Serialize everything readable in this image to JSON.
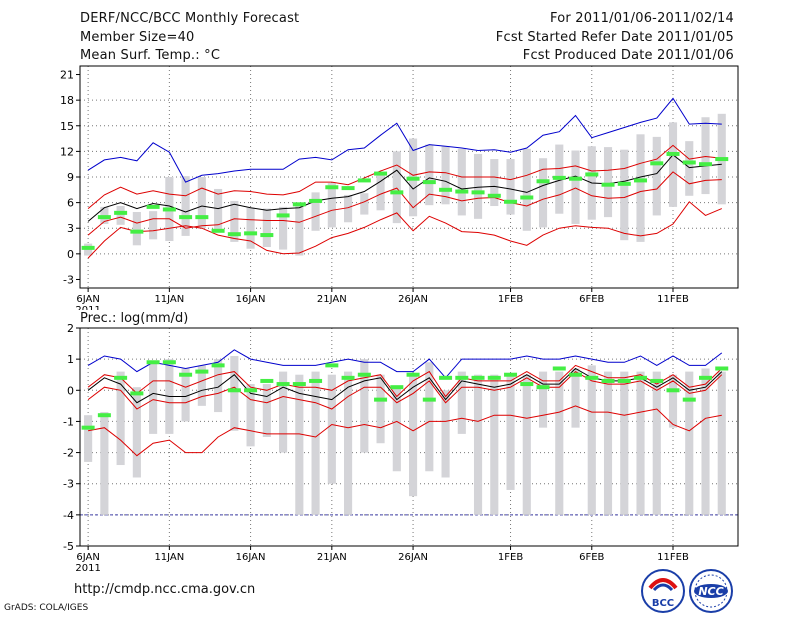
{
  "header": {
    "left": [
      "DERF/NCC/BCC Monthly Forecast",
      "Member Size=40",
      "Mean Surf. Temp.: °C"
    ],
    "right": [
      "For 2011/01/06-2011/02/14",
      "Fcst Started Refer Date 2011/01/05",
      "Fcst Produced Date 2011/01/06"
    ]
  },
  "footer": {
    "url": "http://cmdp.ncc.cma.gov.cn",
    "credit": "GrADS: COLA/IGES",
    "logo1_text": "BCC",
    "logo2_text": "NCC"
  },
  "colors": {
    "max": "#0000cc",
    "spread": "#dd0000",
    "mean": "#000000",
    "box": "#d4d4d8",
    "marker": "#44ee44",
    "grid": "#777777",
    "floor": "#4444aa"
  },
  "chart_data": [
    {
      "type": "line",
      "title": "Mean Surf. Temp.: °C",
      "x": [
        6,
        7,
        8,
        9,
        10,
        11,
        12,
        13,
        14,
        15,
        16,
        17,
        18,
        19,
        20,
        21,
        22,
        23,
        24,
        25,
        26,
        27,
        28,
        29,
        30,
        31,
        32,
        33,
        34,
        35,
        36,
        37,
        38,
        39,
        40,
        41,
        42,
        43,
        44,
        45
      ],
      "xticks": [
        {
          "day": 6,
          "label": "6JAN",
          "sub": "2011"
        },
        {
          "day": 11,
          "label": "11JAN"
        },
        {
          "day": 16,
          "label": "16JAN"
        },
        {
          "day": 21,
          "label": "21JAN"
        },
        {
          "day": 26,
          "label": "26JAN"
        },
        {
          "day": 32,
          "label": "1FEB"
        },
        {
          "day": 37,
          "label": "6FEB"
        },
        {
          "day": 42,
          "label": "11FEB"
        }
      ],
      "ylim": [
        -4,
        22
      ],
      "yticks": [
        -3,
        0,
        3,
        6,
        9,
        12,
        15,
        18,
        21
      ],
      "series": [
        {
          "name": "max",
          "values": [
            9.8,
            11.0,
            11.3,
            10.9,
            13.0,
            11.9,
            8.4,
            9.2,
            9.4,
            9.7,
            9.9,
            9.9,
            9.9,
            11.1,
            11.3,
            11.0,
            12.2,
            12.4,
            13.9,
            15.3,
            12.1,
            12.8,
            12.6,
            12.4,
            12.1,
            12.2,
            11.9,
            12.4,
            13.9,
            14.3,
            16.2,
            13.6,
            14.2,
            14.8,
            15.4,
            15.9,
            18.2,
            15.2,
            15.3,
            15.2
          ]
        },
        {
          "name": "upper",
          "values": [
            5.3,
            6.9,
            7.8,
            7.0,
            7.4,
            7.0,
            6.8,
            7.7,
            7.0,
            7.4,
            7.3,
            7.0,
            6.9,
            7.3,
            8.4,
            8.4,
            8.1,
            8.9,
            9.7,
            10.4,
            9.2,
            9.6,
            9.5,
            9.0,
            9.0,
            9.0,
            8.7,
            9.2,
            9.9,
            10.0,
            10.3,
            9.7,
            9.8,
            10.0,
            10.6,
            11.1,
            12.7,
            11.1,
            11.4,
            11.2
          ]
        },
        {
          "name": "mean",
          "values": [
            3.8,
            5.4,
            6.0,
            5.3,
            5.9,
            5.6,
            4.9,
            5.6,
            5.3,
            5.8,
            5.4,
            5.1,
            5.3,
            5.4,
            6.2,
            6.5,
            6.7,
            7.3,
            8.5,
            9.8,
            7.6,
            8.9,
            8.5,
            7.6,
            7.8,
            7.9,
            7.6,
            7.2,
            8.0,
            8.6,
            9.1,
            8.3,
            8.2,
            8.5,
            9.0,
            9.4,
            11.6,
            10.1,
            10.3,
            10.5
          ]
        },
        {
          "name": "lower",
          "values": [
            2.2,
            3.8,
            4.3,
            3.6,
            4.1,
            4.1,
            3.0,
            3.3,
            3.4,
            4.1,
            4.0,
            3.9,
            3.9,
            3.7,
            4.4,
            5.1,
            5.4,
            6.1,
            7.0,
            7.7,
            5.4,
            7.0,
            6.7,
            6.2,
            6.5,
            6.6,
            6.0,
            5.6,
            6.4,
            6.9,
            7.7,
            6.8,
            6.5,
            6.6,
            7.3,
            7.6,
            9.6,
            8.2,
            8.6,
            8.7
          ]
        },
        {
          "name": "min",
          "values": [
            -0.5,
            1.5,
            3.1,
            2.6,
            2.7,
            3.0,
            3.3,
            3.0,
            2.2,
            1.8,
            1.5,
            0.4,
            0.0,
            0.1,
            0.9,
            1.9,
            2.4,
            3.1,
            4.0,
            4.8,
            2.7,
            4.4,
            3.6,
            2.6,
            2.5,
            2.2,
            1.5,
            1.0,
            2.2,
            3.0,
            3.3,
            3.1,
            3.0,
            2.4,
            2.1,
            2.4,
            3.5,
            6.1,
            4.5,
            5.3
          ]
        }
      ],
      "boxes": [
        [
          -0.2,
          1.2
        ],
        [
          3.5,
          5.5
        ],
        [
          3.4,
          5.6
        ],
        [
          1.0,
          4.9
        ],
        [
          1.7,
          5.0
        ],
        [
          1.5,
          9.0
        ],
        [
          2.1,
          9.1
        ],
        [
          3.0,
          9.0
        ],
        [
          2.5,
          7.6
        ],
        [
          1.4,
          6.2
        ],
        [
          0.6,
          5.4
        ],
        [
          0.8,
          5.3
        ],
        [
          0.5,
          5.5
        ],
        [
          -0.2,
          6.0
        ],
        [
          2.7,
          7.2
        ],
        [
          3.1,
          8.3
        ],
        [
          3.7,
          6.9
        ],
        [
          4.6,
          7.1
        ],
        [
          5.1,
          9.5
        ],
        [
          3.6,
          12.0
        ],
        [
          4.4,
          13.5
        ],
        [
          5.7,
          12.8
        ],
        [
          5.8,
          12.6
        ],
        [
          4.5,
          12.3
        ],
        [
          4.1,
          11.7
        ],
        [
          5.6,
          11.1
        ],
        [
          4.6,
          11.1
        ],
        [
          2.7,
          12.3
        ],
        [
          3.1,
          11.2
        ],
        [
          4.7,
          12.8
        ],
        [
          3.5,
          12.1
        ],
        [
          4.0,
          12.6
        ],
        [
          4.3,
          12.5
        ],
        [
          1.6,
          12.2
        ],
        [
          1.4,
          14.0
        ],
        [
          4.5,
          13.7
        ],
        [
          5.5,
          15.4
        ],
        [
          6.8,
          13.2
        ],
        [
          7.0,
          16.0
        ],
        [
          5.8,
          16.4
        ]
      ],
      "markers": [
        0.7,
        4.3,
        4.8,
        2.6,
        5.5,
        5.2,
        4.3,
        4.3,
        2.7,
        2.3,
        2.4,
        2.2,
        4.5,
        5.8,
        6.2,
        7.8,
        7.7,
        8.6,
        9.4,
        7.2,
        8.8,
        8.4,
        7.5,
        7.3,
        7.2,
        6.8,
        6.1,
        6.6,
        8.5,
        8.9,
        8.8,
        9.3,
        8.1,
        8.2,
        8.6,
        10.6,
        11.7,
        10.7,
        10.5,
        11.1
      ]
    },
    {
      "type": "line",
      "title": "Prec.: log(mm/d)",
      "x": [
        6,
        7,
        8,
        9,
        10,
        11,
        12,
        13,
        14,
        15,
        16,
        17,
        18,
        19,
        20,
        21,
        22,
        23,
        24,
        25,
        26,
        27,
        28,
        29,
        30,
        31,
        32,
        33,
        34,
        35,
        36,
        37,
        38,
        39,
        40,
        41,
        42,
        43,
        44,
        45
      ],
      "xticks": [
        {
          "day": 6,
          "label": "6JAN",
          "sub": "2011"
        },
        {
          "day": 11,
          "label": "11JAN"
        },
        {
          "day": 16,
          "label": "16JAN"
        },
        {
          "day": 21,
          "label": "21JAN"
        },
        {
          "day": 26,
          "label": "26JAN"
        },
        {
          "day": 32,
          "label": "1FEB"
        },
        {
          "day": 37,
          "label": "6FEB"
        },
        {
          "day": 42,
          "label": "11FEB"
        }
      ],
      "ylim": [
        -5,
        2
      ],
      "yticks": [
        -5,
        -4,
        -3,
        -2,
        -1,
        0,
        1,
        2
      ],
      "floor": -4,
      "series": [
        {
          "name": "max",
          "values": [
            0.8,
            1.1,
            1.0,
            0.6,
            0.9,
            0.8,
            0.7,
            0.8,
            0.9,
            1.3,
            1.0,
            0.9,
            0.8,
            0.8,
            0.8,
            0.9,
            1.0,
            0.9,
            0.9,
            0.6,
            0.6,
            1.0,
            0.4,
            1.0,
            1.0,
            1.0,
            1.0,
            1.1,
            1.0,
            1.0,
            1.1,
            1.0,
            0.9,
            0.9,
            1.1,
            0.8,
            1.1,
            0.8,
            0.8,
            1.2
          ]
        },
        {
          "name": "upper",
          "values": [
            0.1,
            0.5,
            0.4,
            -0.1,
            0.3,
            0.3,
            0.1,
            0.3,
            0.5,
            0.6,
            0.1,
            0.0,
            0.2,
            0.1,
            0.1,
            0.0,
            0.3,
            0.4,
            0.5,
            -0.2,
            0.3,
            0.6,
            -0.2,
            0.4,
            0.3,
            0.3,
            0.3,
            0.6,
            0.3,
            0.3,
            0.8,
            0.6,
            0.4,
            0.4,
            0.5,
            0.2,
            0.5,
            0.1,
            0.2,
            0.7
          ]
        },
        {
          "name": "mean",
          "values": [
            0.0,
            0.4,
            0.2,
            -0.4,
            -0.1,
            -0.2,
            -0.2,
            0.0,
            0.1,
            0.5,
            -0.1,
            -0.2,
            0.1,
            -0.1,
            -0.2,
            -0.3,
            0.1,
            0.3,
            0.4,
            -0.3,
            0.1,
            0.4,
            -0.3,
            0.3,
            0.2,
            0.1,
            0.2,
            0.5,
            0.2,
            0.2,
            0.7,
            0.4,
            0.3,
            0.3,
            0.4,
            0.1,
            0.4,
            0.0,
            0.1,
            0.6
          ]
        },
        {
          "name": "lower",
          "values": [
            -0.3,
            0.1,
            0.0,
            -0.6,
            -0.3,
            -0.4,
            -0.4,
            -0.2,
            -0.1,
            0.1,
            -0.3,
            -0.4,
            -0.2,
            -0.3,
            -0.4,
            -0.6,
            -0.2,
            0.1,
            0.1,
            -0.4,
            -0.1,
            0.3,
            -0.4,
            0.1,
            0.1,
            0.0,
            0.1,
            0.4,
            0.1,
            0.1,
            0.6,
            0.3,
            0.2,
            0.2,
            0.3,
            0.0,
            0.3,
            -0.1,
            0.0,
            0.5
          ]
        },
        {
          "name": "min",
          "values": [
            -1.3,
            -1.2,
            -1.6,
            -2.1,
            -1.7,
            -1.6,
            -2.0,
            -2.0,
            -1.5,
            -1.2,
            -1.3,
            -1.4,
            -1.4,
            -1.4,
            -1.5,
            -1.1,
            -1.2,
            -1.1,
            -1.2,
            -1.0,
            -1.3,
            -1.0,
            -1.0,
            -0.9,
            -1.0,
            -0.8,
            -0.8,
            -0.9,
            -0.8,
            -0.7,
            -0.5,
            -0.7,
            -0.7,
            -0.8,
            -0.7,
            -0.6,
            -1.1,
            -1.3,
            -0.9,
            -0.8
          ]
        }
      ],
      "boxes": [
        [
          -2.3,
          -0.8
        ],
        [
          -4.0,
          -0.7
        ],
        [
          -2.4,
          0.6
        ],
        [
          -2.8,
          0.1
        ],
        [
          -1.4,
          0.9
        ],
        [
          -1.4,
          1.0
        ],
        [
          -1.0,
          0.7
        ],
        [
          -0.5,
          0.8
        ],
        [
          -0.7,
          1.0
        ],
        [
          -1.3,
          1.1
        ],
        [
          -1.8,
          0.2
        ],
        [
          -1.5,
          0.2
        ],
        [
          -2.0,
          0.6
        ],
        [
          -4.0,
          0.5
        ],
        [
          -4.0,
          0.6
        ],
        [
          -3.0,
          0.5
        ],
        [
          -4.0,
          0.6
        ],
        [
          -2.0,
          1.0
        ],
        [
          -1.7,
          0.5
        ],
        [
          -2.6,
          0.1
        ],
        [
          -3.4,
          0.5
        ],
        [
          -2.6,
          0.9
        ],
        [
          -2.8,
          0.0
        ],
        [
          -1.4,
          0.6
        ],
        [
          -4.0,
          0.5
        ],
        [
          -4.0,
          0.5
        ],
        [
          -3.2,
          0.5
        ],
        [
          -4.0,
          0.5
        ],
        [
          -1.2,
          0.6
        ],
        [
          -4.0,
          0.6
        ],
        [
          -1.2,
          0.7
        ],
        [
          -4.0,
          0.8
        ],
        [
          -4.0,
          0.6
        ],
        [
          -4.0,
          0.6
        ],
        [
          -4.0,
          0.6
        ],
        [
          -4.0,
          0.6
        ],
        [
          -1.2,
          0.5
        ],
        [
          -4.0,
          0.6
        ],
        [
          -4.0,
          0.7
        ],
        [
          -4.0,
          0.6
        ]
      ],
      "markers": [
        -1.2,
        -0.8,
        0.4,
        -0.1,
        0.9,
        0.9,
        0.5,
        0.6,
        0.8,
        0.0,
        0.0,
        0.3,
        0.2,
        0.2,
        0.3,
        0.8,
        0.4,
        0.5,
        -0.3,
        0.1,
        0.5,
        -0.3,
        0.4,
        0.4,
        0.4,
        0.4,
        0.5,
        0.2,
        0.1,
        0.7,
        0.5,
        0.4,
        0.3,
        0.3,
        0.4,
        0.3,
        0.0,
        -0.3,
        0.4,
        0.7
      ]
    }
  ]
}
